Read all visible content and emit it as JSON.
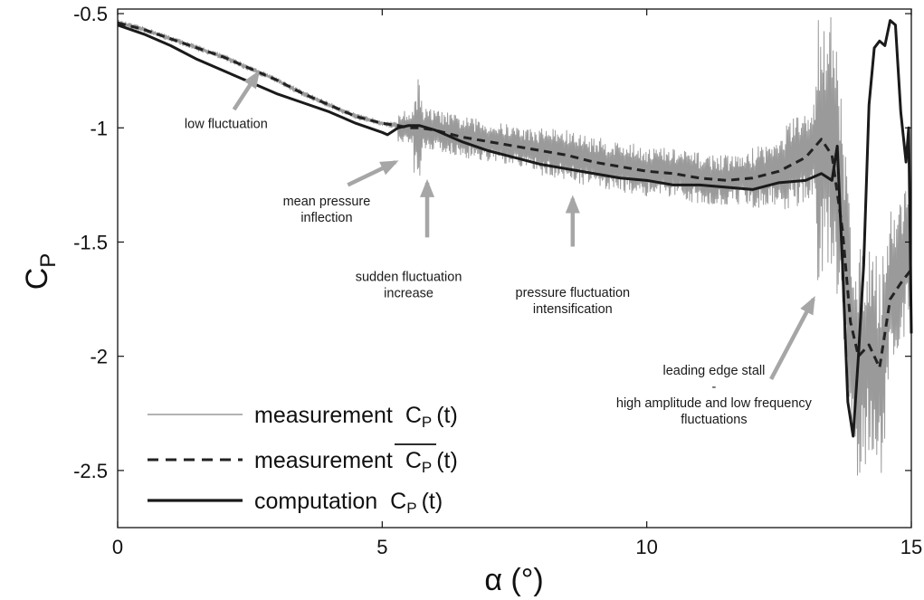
{
  "chart_data": {
    "type": "line",
    "xlabel": "α (°)",
    "ylabel": {
      "base": "C",
      "sub": "P"
    },
    "xlim": [
      0,
      15
    ],
    "ylim": [
      -2.75,
      -0.48
    ],
    "xticks": [
      0,
      5,
      10,
      15
    ],
    "yticks": [
      -0.5,
      -1,
      -1.5,
      -2,
      -2.5
    ],
    "grid": false,
    "legend_position": "bottom-left",
    "legend": [
      {
        "id": "measured",
        "prefix": "measurement",
        "symbol": "C",
        "sub": "P",
        "suffix": "(t)",
        "overline": false,
        "style": "thin-gray"
      },
      {
        "id": "mean",
        "prefix": "measurement",
        "symbol": "C",
        "sub": "P",
        "suffix": "(t)",
        "overline": true,
        "style": "dashed"
      },
      {
        "id": "computed",
        "prefix": "computation",
        "symbol": "C",
        "sub": "P",
        "suffix": "(t)",
        "overline": false,
        "style": "solid-thick"
      }
    ],
    "series": [
      {
        "id": "measured",
        "color": "#9a9a9a",
        "x": [
          0,
          0.5,
          1,
          1.5,
          2,
          2.5,
          3,
          3.5,
          4,
          4.5,
          5,
          5.3,
          5.5,
          5.7,
          6,
          6.5,
          7,
          7.5,
          8,
          8.5,
          9,
          9.5,
          10,
          10.5,
          11,
          11.5,
          12,
          12.5,
          13,
          13.3,
          13.5,
          13.7,
          13.85,
          14,
          14.2,
          14.4,
          14.6,
          14.8,
          15
        ],
        "y": [
          -0.54,
          -0.57,
          -0.61,
          -0.65,
          -0.69,
          -0.74,
          -0.79,
          -0.85,
          -0.9,
          -0.95,
          -0.98,
          -0.99,
          -1.0,
          -1.0,
          -1.01,
          -1.04,
          -1.06,
          -1.08,
          -1.1,
          -1.12,
          -1.15,
          -1.17,
          -1.19,
          -1.2,
          -1.22,
          -1.23,
          -1.22,
          -1.19,
          -1.13,
          -1.05,
          -1.1,
          -1.4,
          -1.85,
          -2.05,
          -1.95,
          -2.1,
          -1.7,
          -1.65,
          -1.45
        ]
      },
      {
        "id": "mean",
        "color": "#222222",
        "x": [
          0,
          0.5,
          1,
          1.5,
          2,
          2.5,
          3,
          3.5,
          4,
          4.5,
          5,
          5.3,
          5.5,
          5.7,
          6,
          6.5,
          7,
          7.5,
          8,
          8.5,
          9,
          9.5,
          10,
          10.5,
          11,
          11.5,
          12,
          12.5,
          13,
          13.3,
          13.5,
          13.7,
          13.85,
          14,
          14.2,
          14.4,
          14.6,
          14.8,
          15
        ],
        "y": [
          -0.54,
          -0.57,
          -0.61,
          -0.65,
          -0.69,
          -0.74,
          -0.79,
          -0.85,
          -0.9,
          -0.95,
          -0.98,
          -0.99,
          -1.0,
          -1.0,
          -1.01,
          -1.04,
          -1.06,
          -1.08,
          -1.1,
          -1.12,
          -1.15,
          -1.17,
          -1.19,
          -1.2,
          -1.22,
          -1.23,
          -1.22,
          -1.19,
          -1.13,
          -1.05,
          -1.12,
          -1.45,
          -1.85,
          -2.0,
          -1.95,
          -2.05,
          -1.75,
          -1.68,
          -1.62
        ]
      },
      {
        "id": "computed",
        "color": "#1a1a1a",
        "x": [
          0,
          0.5,
          1,
          1.5,
          2,
          2.5,
          3,
          3.5,
          4,
          4.5,
          5,
          5.1,
          5.3,
          5.5,
          5.7,
          6,
          6.5,
          7,
          7.5,
          8,
          8.5,
          9,
          9.5,
          10,
          10.5,
          11,
          11.5,
          12,
          12.5,
          13,
          13.3,
          13.5,
          13.6,
          13.7,
          13.8,
          13.9,
          14,
          14.1,
          14.2,
          14.3,
          14.4,
          14.5,
          14.6,
          14.7,
          14.8,
          14.9,
          14.95,
          15
        ],
        "y": [
          -0.55,
          -0.59,
          -0.64,
          -0.7,
          -0.75,
          -0.8,
          -0.85,
          -0.89,
          -0.93,
          -0.98,
          -1.02,
          -1.03,
          -1.0,
          -0.99,
          -0.99,
          -1.01,
          -1.06,
          -1.1,
          -1.13,
          -1.16,
          -1.18,
          -1.2,
          -1.22,
          -1.23,
          -1.25,
          -1.25,
          -1.26,
          -1.27,
          -1.24,
          -1.23,
          -1.2,
          -1.23,
          -1.08,
          -1.6,
          -2.2,
          -2.35,
          -2.0,
          -1.6,
          -0.9,
          -0.65,
          -0.62,
          -0.64,
          -0.53,
          -0.55,
          -0.93,
          -1.15,
          -1.0,
          -1.9
        ]
      }
    ],
    "annotations": [
      {
        "lines": [
          "low fluctuation"
        ],
        "at": [
          2.05,
          -1.0
        ]
      },
      {
        "lines": [
          "mean pressure",
          "inflection"
        ],
        "at": [
          3.95,
          -1.34
        ]
      },
      {
        "lines": [
          "sudden fluctuation",
          "increase"
        ],
        "at": [
          5.5,
          -1.67
        ]
      },
      {
        "lines": [
          "pressure fluctuation",
          "intensification"
        ],
        "at": [
          8.6,
          -1.74
        ]
      },
      {
        "lines": [
          "leading edge stall",
          "-",
          "high amplitude and low frequency",
          "fluctuations"
        ],
        "at": [
          11.27,
          -2.08
        ]
      }
    ],
    "arrows": [
      {
        "from": [
          2.2,
          -0.92
        ],
        "to": [
          2.65,
          -0.76
        ]
      },
      {
        "from": [
          4.35,
          -1.25
        ],
        "to": [
          5.25,
          -1.15
        ]
      },
      {
        "from": [
          5.85,
          -1.48
        ],
        "to": [
          5.85,
          -1.24
        ]
      },
      {
        "from": [
          8.6,
          -1.52
        ],
        "to": [
          8.6,
          -1.31
        ]
      },
      {
        "from": [
          12.35,
          -2.1
        ],
        "to": [
          13.15,
          -1.75
        ]
      }
    ]
  }
}
